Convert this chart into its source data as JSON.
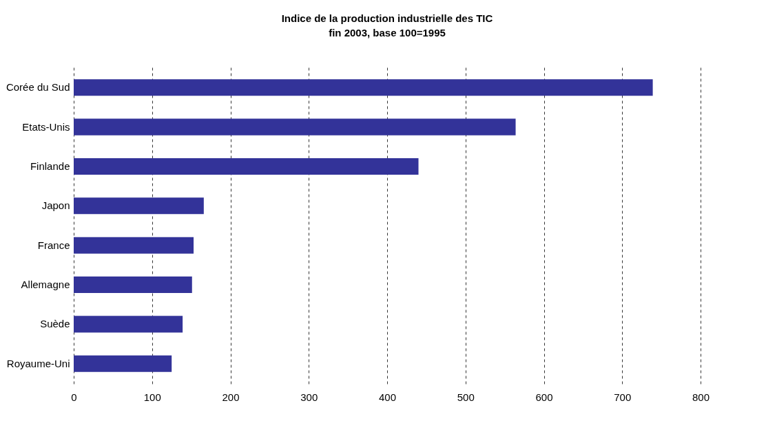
{
  "chart_data": {
    "type": "bar",
    "orientation": "horizontal",
    "title": "Indice de la production industrielle des TIC",
    "subtitle": "fin 2003, base 100=1995",
    "categories": [
      "Corée du Sud",
      "Etats-Unis",
      "Finlande",
      "Japon",
      "France",
      "Allemagne",
      "Suède",
      "Royaume-Uni"
    ],
    "values": [
      739,
      564,
      440,
      166,
      153,
      151,
      139,
      125
    ],
    "color": "#333399",
    "xlim": [
      0,
      800
    ],
    "xticks": [
      0,
      100,
      200,
      300,
      400,
      500,
      600,
      700,
      800
    ],
    "grid": "x"
  }
}
